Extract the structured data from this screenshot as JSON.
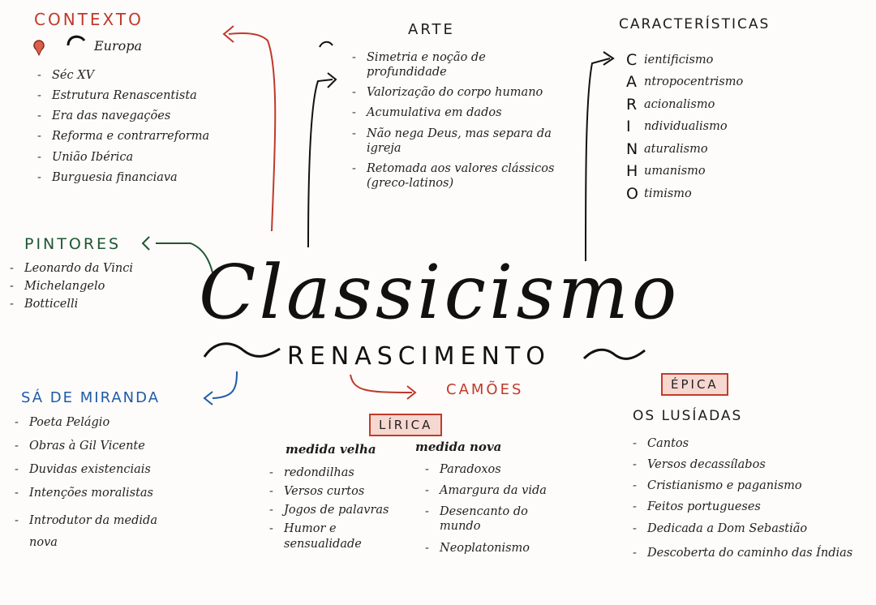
{
  "colors": {
    "contexto": "#c0392b",
    "pintores": "#1e5631",
    "miranda": "#1f5aa6",
    "camoes": "#c0392b",
    "ink": "#1c1c1c",
    "tag_fill": "#f7d8d0"
  },
  "title": "Classicismo",
  "subtitle": "RENASCIMENTO",
  "contexto": {
    "heading": "CONTEXTO",
    "location": "Europa",
    "items": [
      "Séc XV",
      "Estrutura Renascentista",
      "Era das navegações",
      "Reforma e contrarreforma",
      "União Ibérica",
      "Burguesia financiava"
    ]
  },
  "arte": {
    "heading": "ARTE",
    "items": [
      "Simetria e noção de profundidade",
      "Valorização do corpo humano",
      "Acumulativa em dados",
      "Não nega Deus, mas separa da igreja",
      "Retomada aos valores clássicos (greco-latinos)"
    ]
  },
  "caracteristicas": {
    "heading": "CARACTERÍSTICAS",
    "acrostic": [
      {
        "letter": "C",
        "rest": "ientificismo"
      },
      {
        "letter": "A",
        "rest": "ntropocentrismo"
      },
      {
        "letter": "R",
        "rest": "acionalismo"
      },
      {
        "letter": "I",
        "rest": "ndividualismo"
      },
      {
        "letter": "N",
        "rest": "aturalismo"
      },
      {
        "letter": "H",
        "rest": "umanismo"
      },
      {
        "letter": "O",
        "rest": "timismo"
      }
    ]
  },
  "pintores": {
    "heading": "PINTORES",
    "items": [
      "Leonardo da Vinci",
      "Michelangelo",
      "Botticelli"
    ]
  },
  "miranda": {
    "heading": "SÁ DE MIRANDA",
    "items": [
      "Poeta Pelágio",
      "Obras à Gil Vicente",
      "Duvidas existenciais",
      "Intenções moralistas",
      "Introdutor da medida nova"
    ]
  },
  "camoes": {
    "heading": "CAMÕES",
    "lirica": {
      "tag": "LÍRICA",
      "velha": {
        "heading": "medida velha",
        "items": [
          "redondilhas",
          "Versos curtos",
          "Jogos de palavras",
          "Humor e sensualidade"
        ]
      },
      "nova": {
        "heading": "medida nova",
        "items": [
          "Paradoxos",
          "Amargura da vida",
          "Desencanto do mundo",
          "Neoplatonismo"
        ]
      }
    },
    "epica": {
      "tag": "ÉPICA",
      "poem": "OS LUSÍADAS",
      "items": [
        "Cantos",
        "Versos decassílabos",
        "Cristianismo e paganismo",
        "Feitos portugueses",
        "Dedicada a Dom Sebastião",
        "Descoberta do caminho das Índias"
      ]
    }
  }
}
